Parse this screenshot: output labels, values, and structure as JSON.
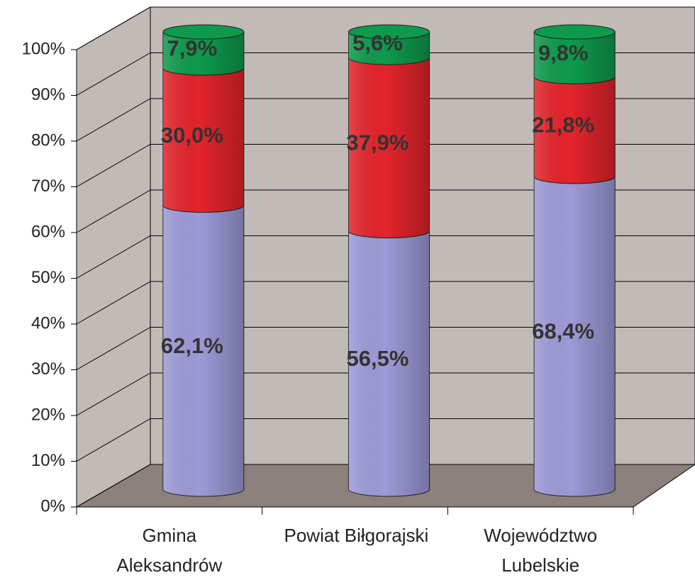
{
  "chart_data": {
    "type": "bar3d_stacked_percent",
    "categories": [
      "Gmina Aleksandrów",
      "Powiat Biłgorajski",
      "Województwo Lubelskie"
    ],
    "series": [
      {
        "color": "#9d9ad8",
        "values": [
          62.1,
          56.5,
          68.4
        ],
        "value_labels": [
          "62,1%",
          "56,5%",
          "68,4%"
        ]
      },
      {
        "color": "#e3242b",
        "values": [
          30.0,
          37.9,
          21.8
        ],
        "value_labels": [
          "30,0%",
          "37,9%",
          "21,8%"
        ]
      },
      {
        "color": "#0e9a4c",
        "values": [
          7.9,
          5.6,
          9.8
        ],
        "value_labels": [
          "7,9%",
          "5,6%",
          "9,8%"
        ]
      }
    ],
    "ylim": [
      0,
      100
    ],
    "yticks": [
      {
        "value": 0,
        "label": "0%"
      },
      {
        "value": 10,
        "label": "10%"
      },
      {
        "value": 20,
        "label": "20%"
      },
      {
        "value": 30,
        "label": "30%"
      },
      {
        "value": 40,
        "label": "40%"
      },
      {
        "value": 50,
        "label": "50%"
      },
      {
        "value": 60,
        "label": "60%"
      },
      {
        "value": 70,
        "label": "70%"
      },
      {
        "value": 80,
        "label": "80%"
      },
      {
        "value": 90,
        "label": "90%"
      },
      {
        "value": 100,
        "label": "100%"
      }
    ],
    "grid": true
  }
}
